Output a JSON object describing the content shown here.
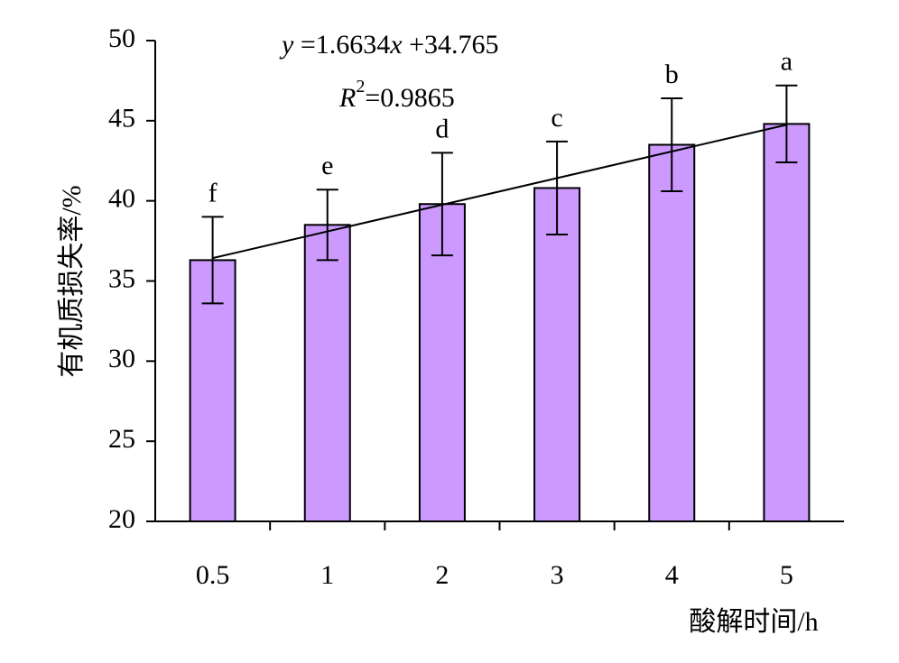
{
  "chart_data": {
    "type": "bar",
    "x_label": "酸解时间/h",
    "y_label": "有机质损失率/%",
    "categories": [
      "0.5",
      "1",
      "2",
      "3",
      "4",
      "5"
    ],
    "values": [
      36.3,
      38.5,
      39.8,
      40.8,
      43.5,
      44.8
    ],
    "errors": [
      2.7,
      2.2,
      3.2,
      2.9,
      2.9,
      2.4
    ],
    "significance_labels": [
      "f",
      "e",
      "d",
      "c",
      "b",
      "a"
    ],
    "color": "#cc99ff",
    "ylim": [
      20,
      50
    ],
    "yticks": [
      20,
      25,
      30,
      35,
      40,
      45,
      50
    ],
    "trendline": {
      "slope": 1.6634,
      "intercept": 34.765,
      "equation": [
        "y",
        " =1.6634",
        "x",
        " +34.765"
      ],
      "r_squared": [
        "R",
        "2",
        "=0.9865"
      ]
    }
  }
}
